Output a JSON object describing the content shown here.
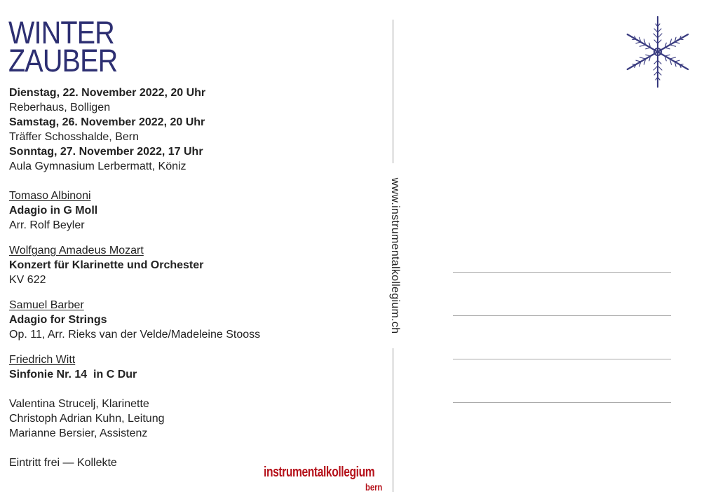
{
  "title": {
    "line1": "WINTER",
    "line2": "ZAUBER"
  },
  "dates": [
    {
      "date": "Dienstag, 22. November 2022, 20 Uhr",
      "venue": "Reberhaus, Bolligen"
    },
    {
      "date": "Samstag, 26. November 2022, 20 Uhr",
      "venue": "Träffer Schosshalde, Bern"
    },
    {
      "date": "Sonntag, 27. November 2022, 17 Uhr",
      "venue": "Aula Gymnasium Lerbermatt, Köniz"
    }
  ],
  "program": [
    {
      "composer": "Tomaso Albinoni",
      "work": "Adagio in G Moll",
      "detail": "Arr. Rolf Beyler"
    },
    {
      "composer": "Wolfgang Amadeus Mozart",
      "work": "Konzert für Klarinette und Orchester",
      "detail": "KV 622"
    },
    {
      "composer": "Samuel Barber",
      "work": "Adagio for Strings",
      "detail": "Op. 11, Arr. Rieks van der Velde/Madeleine Stooss"
    },
    {
      "composer": "Friedrich Witt",
      "work": "Sinfonie Nr. 14  in C Dur"
    }
  ],
  "performers": [
    "Valentina Strucelj, Klarinette",
    "Christoph Adrian Kuhn, Leitung",
    "Marianne Bersier, Assistenz"
  ],
  "admission": "Eintritt frei — Kollekte",
  "website": "www.instrumentalkollegium.ch",
  "logo": {
    "name": "instrumentalkollegium",
    "city": "bern"
  },
  "colors": {
    "title": "#2d2f72",
    "logo": "#b5121b",
    "snowflake": "#3a3c80"
  },
  "icons": {
    "stamp": "snowflake-icon"
  }
}
